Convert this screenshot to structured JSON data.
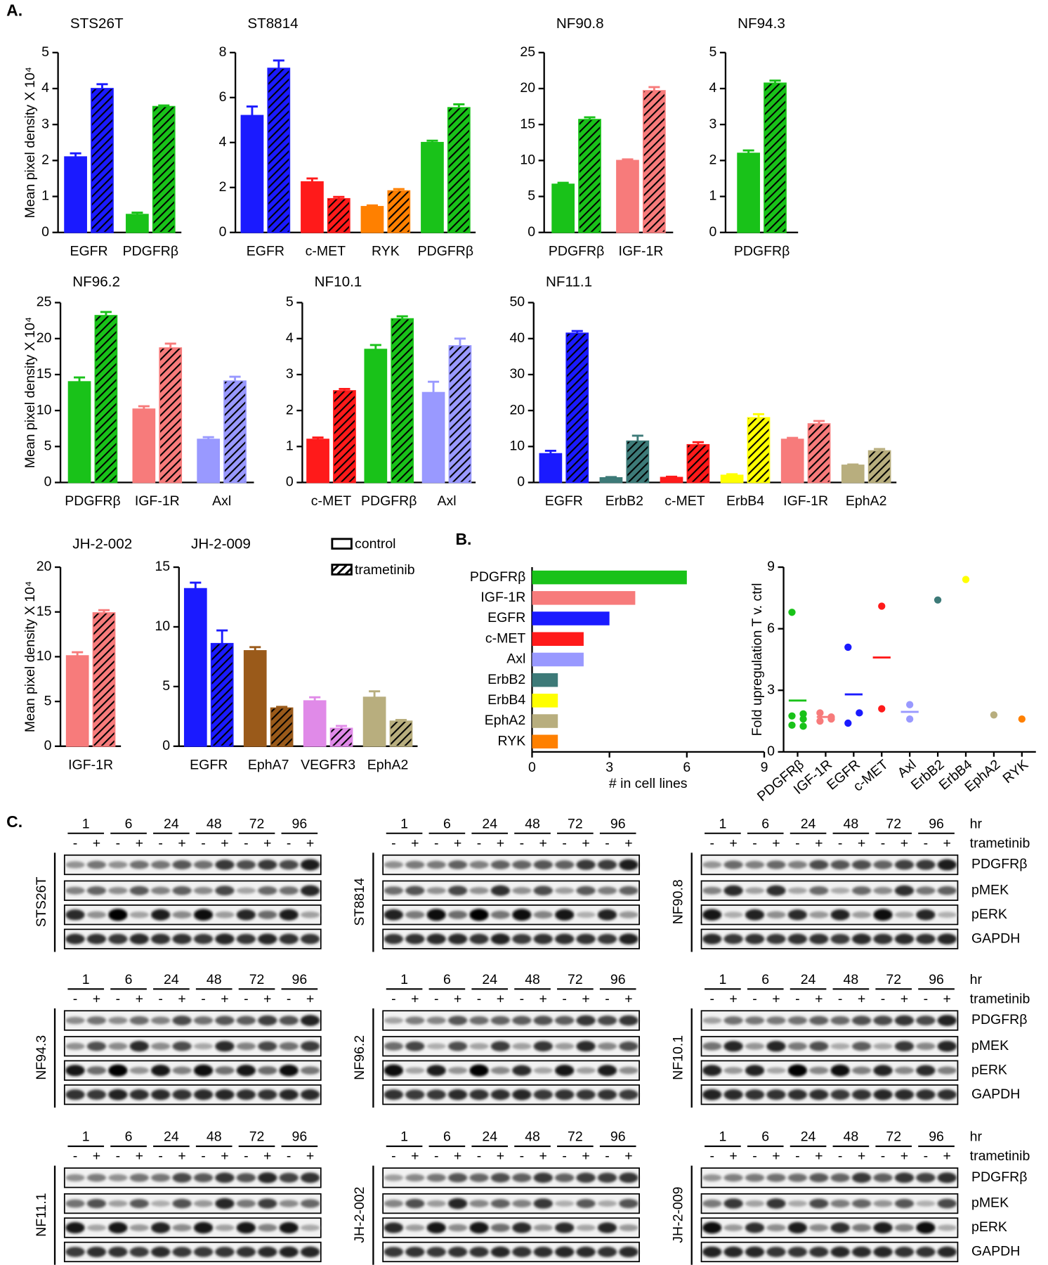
{
  "panel_labels": [
    "A.",
    "B.",
    "C."
  ],
  "legend": [
    "control",
    "trametinib"
  ],
  "chart_data": [
    {
      "type": "bar",
      "title": "STS26T",
      "ylabel": "Mean pixel density X 10⁴",
      "categories": [
        "EGFR",
        "PDGFRβ"
      ],
      "colors": [
        "#1a1aff",
        "#19c219"
      ],
      "ylim": [
        0,
        5
      ],
      "yticks": [
        0,
        1,
        2,
        3,
        4,
        5
      ],
      "series": [
        {
          "values": [
            2.1,
            0.5
          ],
          "errors": [
            0.1,
            0.05
          ]
        },
        {
          "values": [
            4.0,
            3.5
          ],
          "errors": [
            0.12,
            0.03
          ]
        }
      ]
    },
    {
      "type": "bar",
      "title": "ST8814",
      "categories": [
        "EGFR",
        "c-MET",
        "RYK",
        "PDGFRβ"
      ],
      "colors": [
        "#1a1aff",
        "#ff1a1a",
        "#ff8000",
        "#19c219"
      ],
      "ylim": [
        0,
        8
      ],
      "yticks": [
        0,
        2,
        4,
        6,
        8
      ],
      "series": [
        {
          "values": [
            5.2,
            2.25,
            1.15,
            4.0
          ],
          "errors": [
            0.4,
            0.15,
            0.05,
            0.08
          ]
        },
        {
          "values": [
            7.3,
            1.5,
            1.85,
            5.55
          ],
          "errors": [
            0.35,
            0.08,
            0.08,
            0.15
          ]
        }
      ]
    },
    {
      "type": "bar",
      "title": "NF90.8",
      "categories": [
        "PDGFRβ",
        "IGF-1R"
      ],
      "colors": [
        "#19c219",
        "#f77b7b"
      ],
      "ylim": [
        0,
        25
      ],
      "yticks": [
        0,
        5,
        10,
        15,
        20,
        25
      ],
      "series": [
        {
          "values": [
            6.7,
            10.0
          ],
          "errors": [
            0.2,
            0.15
          ]
        },
        {
          "values": [
            15.7,
            19.7
          ],
          "errors": [
            0.3,
            0.5
          ]
        }
      ]
    },
    {
      "type": "bar",
      "title": "NF94.3",
      "categories": [
        "PDGFRβ"
      ],
      "colors": [
        "#19c219"
      ],
      "ylim": [
        0,
        5
      ],
      "yticks": [
        0,
        1,
        2,
        3,
        4,
        5
      ],
      "series": [
        {
          "values": [
            2.2
          ],
          "errors": [
            0.08
          ]
        },
        {
          "values": [
            4.15
          ],
          "errors": [
            0.07
          ]
        }
      ]
    },
    {
      "type": "bar",
      "title": "NF96.2",
      "ylabel": "Mean pixel density X 10⁴",
      "categories": [
        "PDGFRβ",
        "IGF-1R",
        "Axl"
      ],
      "colors": [
        "#19c219",
        "#f77b7b",
        "#9999ff"
      ],
      "ylim": [
        0,
        25
      ],
      "yticks": [
        0,
        5,
        10,
        15,
        20,
        25
      ],
      "series": [
        {
          "values": [
            14.0,
            10.2,
            6.0
          ],
          "errors": [
            0.6,
            0.4,
            0.3
          ]
        },
        {
          "values": [
            23.2,
            18.7,
            14.1
          ],
          "errors": [
            0.5,
            0.6,
            0.6
          ]
        }
      ]
    },
    {
      "type": "bar",
      "title": "NF10.1",
      "categories": [
        "c-MET",
        "PDGFRβ",
        "Axl"
      ],
      "colors": [
        "#ff1a1a",
        "#19c219",
        "#9999ff"
      ],
      "ylim": [
        0,
        5
      ],
      "yticks": [
        0,
        1,
        2,
        3,
        4,
        5
      ],
      "series": [
        {
          "values": [
            1.2,
            3.7,
            2.5
          ],
          "errors": [
            0.05,
            0.12,
            0.3
          ]
        },
        {
          "values": [
            2.55,
            4.55,
            3.8
          ],
          "errors": [
            0.05,
            0.07,
            0.2
          ]
        }
      ]
    },
    {
      "type": "bar",
      "title": "NF11.1",
      "categories": [
        "EGFR",
        "ErbB2",
        "c-MET",
        "ErbB4",
        "IGF-1R",
        "EphA2"
      ],
      "colors": [
        "#1a1aff",
        "#3d7a78",
        "#ff1a1a",
        "#ffff00",
        "#f77b7b",
        "#b8ae7e"
      ],
      "ylim": [
        0,
        50
      ],
      "yticks": [
        0,
        10,
        20,
        30,
        40,
        50
      ],
      "series": [
        {
          "values": [
            8,
            1.3,
            1.4,
            2,
            12,
            4.8
          ],
          "errors": [
            0.8,
            0.2,
            0.2,
            0.3,
            0.4,
            0.2
          ]
        },
        {
          "values": [
            41.5,
            11.5,
            10.5,
            18,
            16.3,
            8.8
          ],
          "errors": [
            0.6,
            1.5,
            0.7,
            1,
            0.8,
            0.5
          ]
        }
      ]
    },
    {
      "type": "bar",
      "title": "JH-2-002",
      "ylabel": "Mean pixel density X 10⁴",
      "categories": [
        "IGF-1R"
      ],
      "colors": [
        "#f77b7b"
      ],
      "ylim": [
        0,
        20
      ],
      "yticks": [
        0,
        5,
        10,
        15,
        20
      ],
      "series": [
        {
          "values": [
            10.1
          ],
          "errors": [
            0.4
          ]
        },
        {
          "values": [
            14.9
          ],
          "errors": [
            0.3
          ]
        }
      ]
    },
    {
      "type": "bar",
      "title": "JH-2-009",
      "categories": [
        "EGFR",
        "EphA7",
        "VEGFR3",
        "EphA2"
      ],
      "colors": [
        "#1a1aff",
        "#9a5a1a",
        "#e08ae8",
        "#b8ae7e"
      ],
      "ylim": [
        0,
        15
      ],
      "yticks": [
        0,
        5,
        10,
        15
      ],
      "series": [
        {
          "values": [
            13.2,
            8.0,
            3.8,
            4.1
          ],
          "errors": [
            0.5,
            0.3,
            0.3,
            0.5
          ]
        },
        {
          "values": [
            8.6,
            3.2,
            1.5,
            2.1
          ],
          "errors": [
            1.1,
            0.1,
            0.2,
            0.1
          ]
        }
      ]
    },
    {
      "type": "hbar",
      "xlabel": "# in cell lines",
      "categories": [
        "PDGFRβ",
        "IGF-1R",
        "EGFR",
        "c-MET",
        "Axl",
        "ErbB2",
        "ErbB4",
        "EphA2",
        "RYK"
      ],
      "values": [
        6,
        4,
        3,
        2,
        2,
        1,
        1,
        1,
        1
      ],
      "colors": [
        "#19c219",
        "#f77b7b",
        "#1a1aff",
        "#ff1a1a",
        "#9999ff",
        "#3d7a78",
        "#ffff00",
        "#b8ae7e",
        "#ff8000"
      ],
      "xlim": [
        0,
        9
      ],
      "xticks": [
        0,
        3,
        6,
        9
      ]
    },
    {
      "type": "dotplot",
      "ylabel": "Fold upregulation T v. ctrl",
      "categories": [
        "PDGFRβ",
        "IGF-1R",
        "EGFR",
        "c-MET",
        "Axl",
        "ErbB2",
        "ErbB4",
        "EphA2",
        "RYK"
      ],
      "colors": [
        "#19c219",
        "#f77b7b",
        "#1a1aff",
        "#ff1a1a",
        "#9999ff",
        "#3d7a78",
        "#ffff00",
        "#b8ae7e",
        "#ff8000"
      ],
      "points": [
        [
          6.8,
          1.85,
          1.75,
          1.6,
          1.3,
          1.25
        ],
        [
          1.9,
          1.6,
          1.5,
          1.7
        ],
        [
          5.1,
          1.9,
          1.4
        ],
        [
          7.1,
          2.1
        ],
        [
          2.3,
          1.6
        ],
        [
          7.4
        ],
        [
          8.4
        ],
        [
          1.8
        ],
        [
          1.6
        ]
      ],
      "means": [
        2.5,
        1.7,
        2.8,
        4.6,
        1.95,
        null,
        null,
        null,
        null
      ],
      "ylim": [
        0,
        9
      ],
      "yticks": [
        0,
        3,
        6,
        9
      ]
    }
  ],
  "blots": {
    "timepoints": [
      "1",
      "6",
      "24",
      "48",
      "72",
      "96"
    ],
    "treatment": [
      "-",
      "+"
    ],
    "time_unit": "hr",
    "drug": "trametinib",
    "proteins": [
      "PDGFRβ",
      "pMEK",
      "pERK",
      "GAPDH"
    ],
    "cell_lines": [
      "STS26T",
      "ST8814",
      "NF90.8",
      "NF94.3",
      "NF96.2",
      "NF10.1",
      "NF11.1",
      "JH-2-002",
      "JH-2-009"
    ]
  }
}
